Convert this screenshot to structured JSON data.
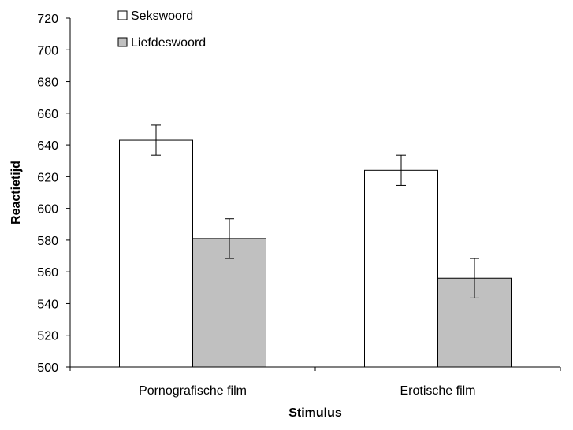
{
  "chart_data": {
    "type": "bar",
    "categories": [
      "Pornografische film",
      "Erotische film"
    ],
    "series": [
      {
        "name": "Sekswoord",
        "values": [
          643,
          624
        ],
        "errors": [
          9.5,
          9.5
        ],
        "color": "#ffffff"
      },
      {
        "name": "Liefdeswoord",
        "values": [
          581,
          556
        ],
        "errors": [
          12.5,
          12.5
        ],
        "color": "#c0c0c0"
      }
    ],
    "xlabel": "Stimulus",
    "ylabel": "Reactietijd",
    "ylim": [
      500,
      720
    ],
    "yticks": [
      500,
      520,
      540,
      560,
      580,
      600,
      620,
      640,
      660,
      680,
      700,
      720
    ],
    "grid": false,
    "legend_position": "top-left"
  }
}
